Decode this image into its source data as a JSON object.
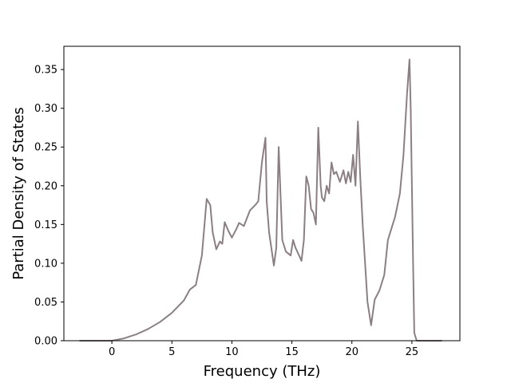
{
  "chart_data": {
    "type": "line",
    "title": "",
    "xlabel": "Frequency (THz)",
    "ylabel": "Partial Density of States",
    "xlim": [
      -4.0,
      29.0
    ],
    "ylim": [
      0.0,
      0.38
    ],
    "xticks": [
      "0",
      "5",
      "10",
      "15",
      "20",
      "25"
    ],
    "yticks": [
      "0.00",
      "0.05",
      "0.10",
      "0.15",
      "0.20",
      "0.25",
      "0.30",
      "0.35"
    ],
    "grid": false,
    "line_color": "#8c7f84",
    "series": [
      {
        "x": [
          -2.7,
          0.0,
          1.0,
          2.0,
          3.0,
          4.0,
          5.0,
          6.0,
          6.5,
          7.0,
          7.5,
          7.9,
          8.2,
          8.4,
          8.7,
          9.0,
          9.2,
          9.4,
          9.7,
          10.0,
          10.4,
          10.6,
          11.0,
          11.5,
          12.0,
          12.2,
          12.5,
          12.8,
          12.9,
          13.1,
          13.5,
          13.7,
          13.9,
          14.0,
          14.2,
          14.5,
          14.9,
          15.1,
          15.3,
          15.6,
          15.8,
          16.0,
          16.2,
          16.4,
          16.6,
          16.8,
          17.0,
          17.2,
          17.4,
          17.5,
          17.7,
          17.9,
          18.1,
          18.3,
          18.5,
          18.7,
          19.0,
          19.3,
          19.5,
          19.7,
          19.9,
          20.1,
          20.3,
          20.5,
          20.7,
          20.9,
          21.1,
          21.3,
          21.6,
          21.9,
          22.3,
          22.7,
          23.0,
          23.3,
          23.6,
          24.0,
          24.3,
          24.6,
          24.8,
          24.9,
          25.0,
          25.1,
          25.2,
          25.4,
          27.5
        ],
        "y": [
          0.0,
          0.0,
          0.003,
          0.008,
          0.015,
          0.024,
          0.036,
          0.052,
          0.066,
          0.072,
          0.11,
          0.183,
          0.175,
          0.14,
          0.118,
          0.128,
          0.125,
          0.153,
          0.142,
          0.133,
          0.145,
          0.152,
          0.148,
          0.168,
          0.176,
          0.18,
          0.23,
          0.262,
          0.18,
          0.14,
          0.097,
          0.12,
          0.25,
          0.21,
          0.13,
          0.115,
          0.11,
          0.13,
          0.12,
          0.11,
          0.103,
          0.13,
          0.212,
          0.2,
          0.17,
          0.165,
          0.15,
          0.275,
          0.2,
          0.185,
          0.18,
          0.2,
          0.19,
          0.23,
          0.215,
          0.218,
          0.205,
          0.22,
          0.203,
          0.218,
          0.205,
          0.24,
          0.2,
          0.283,
          0.21,
          0.15,
          0.1,
          0.05,
          0.02,
          0.053,
          0.065,
          0.085,
          0.13,
          0.145,
          0.16,
          0.19,
          0.24,
          0.32,
          0.363,
          0.3,
          0.2,
          0.1,
          0.01,
          0.0,
          0.0
        ]
      }
    ]
  }
}
